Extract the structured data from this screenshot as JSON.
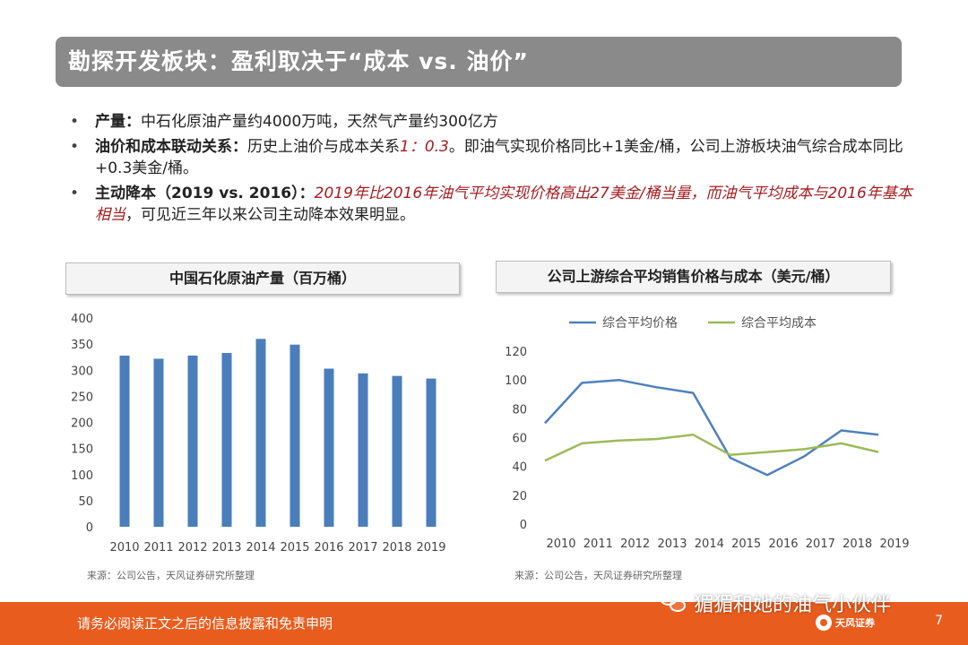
{
  "title": "勘探开发板块：盈利取决于“成本 vs. 油价”",
  "bullets": [
    {
      "label": "产量：",
      "text": "中石化原油产量约4000万吨，天然气产量约300亿方"
    },
    {
      "label": "油价和成本联动关系：",
      "text_before": "历史上油价与成本关系",
      "highlight": "1：0.3",
      "text_after": "。即油气实现价格同比+1美金/桶，公司上游板块油气综合成本同比+0.3美金/桶。"
    },
    {
      "label": "主动降本（2019 vs. 2016）：",
      "highlight": "2019年比2016年油气平均实现价格高出27美金/桶当量，而油气平均成本与2016年基本相当",
      "text_after": "，可见近三年以来公司主动降本效果明显。"
    }
  ],
  "bullet_symbol": "•",
  "chart_left_title": "中国石化原油产量（百万桶）",
  "chart_right_title": "公司上游综合平均销售价格与成本（美元/桶）",
  "source_left": "来源：公司公告，天风证券研究所整理",
  "source_right": "来源：公司公告，天风证券研究所整理",
  "footer": {
    "disclaimer": "请务必阅读正文之后的信息披露和免责申明",
    "page_number": "7",
    "brand": "天风证券"
  },
  "watermark": "猸猸和她的油气小伙伴",
  "colors": {
    "bar": "#4a7ebb",
    "price_line": "#4f81bd",
    "cost_line": "#9bbb59",
    "footer": "#e85d1e",
    "title_bar": "#8a8a8a",
    "highlight": "#a51c20"
  },
  "chart_data": [
    {
      "type": "bar",
      "title": "中国石化原油产量（百万桶）",
      "categories": [
        "2010",
        "2011",
        "2012",
        "2013",
        "2014",
        "2015",
        "2016",
        "2017",
        "2018",
        "2019"
      ],
      "values": [
        328,
        322,
        328,
        333,
        360,
        349,
        303,
        294,
        289,
        284
      ],
      "ylim": [
        0,
        400
      ],
      "yticks": [
        0,
        50,
        100,
        150,
        200,
        250,
        300,
        350,
        400
      ]
    },
    {
      "type": "line",
      "title": "公司上游综合平均销售价格与成本（美元/桶）",
      "categories": [
        "2010",
        "2011",
        "2012",
        "2013",
        "2014",
        "2015",
        "2016",
        "2017",
        "2018",
        "2019"
      ],
      "series": [
        {
          "name": "综合平均价格",
          "values": [
            70,
            98,
            100,
            95,
            91,
            46,
            34,
            47,
            65,
            62
          ]
        },
        {
          "name": "综合平均成本",
          "values": [
            44,
            56,
            58,
            59,
            62,
            48,
            50,
            52,
            56,
            50
          ]
        }
      ],
      "ylim": [
        0,
        120
      ],
      "yticks": [
        0,
        20,
        40,
        60,
        80,
        100,
        120
      ]
    }
  ]
}
